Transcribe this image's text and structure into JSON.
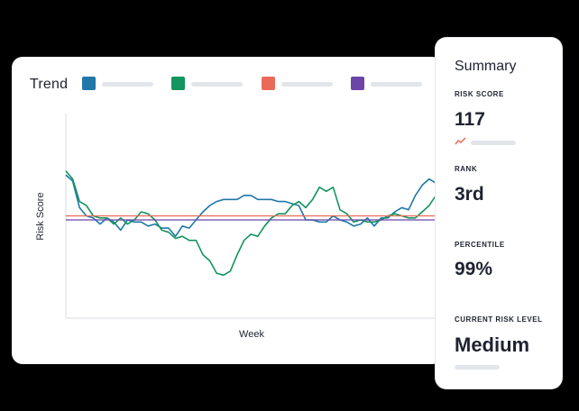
{
  "trend": {
    "title": "Trend",
    "legend": [
      {
        "color": "#1f78a8"
      },
      {
        "color": "#12955f"
      },
      {
        "color": "#e96b57"
      },
      {
        "color": "#6b46a8"
      }
    ]
  },
  "chart_data": {
    "type": "line",
    "ylabel": "Risk Score",
    "xlabel": "Week",
    "grid": false,
    "series": [
      {
        "color": "#1f78a8",
        "values": [
          70,
          67,
          54,
          50,
          49,
          46,
          49,
          47,
          43,
          48,
          47,
          47,
          45,
          46,
          44,
          44,
          40,
          45,
          44,
          48,
          52,
          55,
          57,
          58,
          58,
          58,
          60,
          60,
          58,
          58,
          58,
          57,
          57,
          56,
          55,
          48,
          48,
          47,
          47,
          50,
          48,
          47,
          45,
          46,
          49,
          45,
          49,
          49,
          52,
          54,
          53,
          60,
          65,
          68,
          66,
          68
        ]
      },
      {
        "color": "#12955f",
        "values": [
          72,
          68,
          57,
          55,
          50,
          49,
          49,
          46,
          49,
          46,
          48,
          52,
          51,
          48,
          43,
          42,
          39,
          40,
          38,
          38,
          31,
          28,
          22,
          21,
          23,
          31,
          38,
          41,
          40,
          45,
          49,
          51,
          51,
          55,
          57,
          54,
          58,
          64,
          62,
          64,
          53,
          51,
          47,
          48,
          47,
          47,
          48,
          50,
          51,
          50,
          49,
          49,
          52,
          55,
          60,
          66
        ]
      },
      {
        "color": "#e96b57",
        "values": [
          50,
          50
        ]
      },
      {
        "color": "#6b46a8",
        "values": [
          48,
          48
        ]
      }
    ],
    "ylim": [
      0,
      100
    ]
  },
  "summary": {
    "title": "Summary",
    "risk_score_label": "RISK SCORE",
    "risk_score_value": "117",
    "rank_label": "RANK",
    "rank_value": "3rd",
    "percentile_label": "PERCENTILE",
    "percentile_value": "99%",
    "current_risk_label": "CURRENT RISK LEVEL",
    "current_risk_value": "Medium"
  },
  "icons": {
    "trend_up": "trend-up-icon"
  }
}
